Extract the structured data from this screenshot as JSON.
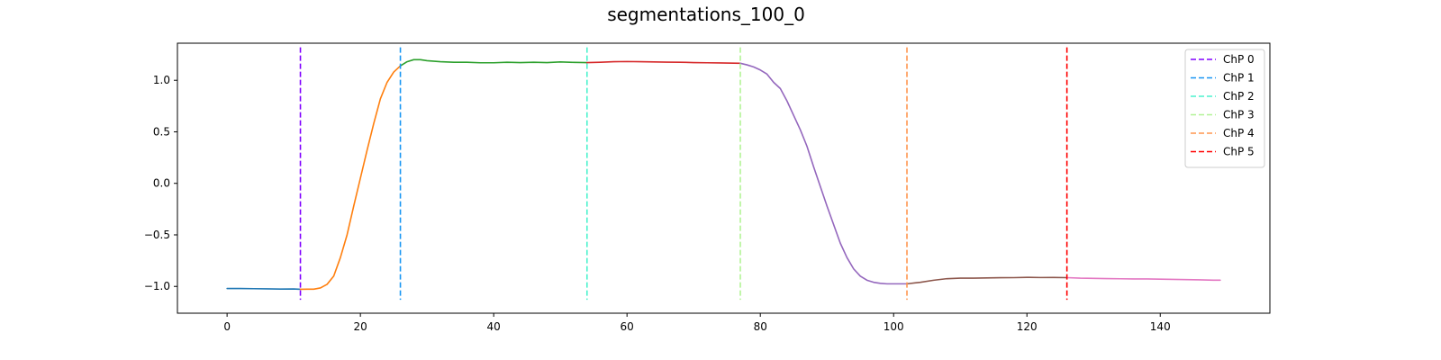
{
  "chart_data": {
    "type": "line",
    "title": "segmentations_100_0",
    "xlabel": "",
    "ylabel": "",
    "xlim": [
      -7.45,
      156.45
    ],
    "ylim": [
      -1.26,
      1.36
    ],
    "x_ticks": [
      0,
      20,
      40,
      60,
      80,
      100,
      120,
      140
    ],
    "x_tick_labels": [
      "0",
      "20",
      "40",
      "60",
      "80",
      "100",
      "120",
      "140"
    ],
    "y_ticks": [
      -1.0,
      -0.5,
      0.0,
      0.5,
      1.0
    ],
    "y_tick_labels": [
      "−1.0",
      "−0.5",
      "0.0",
      "0.5",
      "1.0"
    ],
    "grid": false,
    "legend_position": "top-right",
    "segments": [
      {
        "color": "#1f77b4",
        "x": [
          0,
          2,
          4,
          6,
          8,
          10,
          11
        ],
        "y": [
          -1.02,
          -1.02,
          -1.022,
          -1.024,
          -1.026,
          -1.025,
          -1.028
        ]
      },
      {
        "color": "#ff7f0e",
        "x": [
          11,
          12,
          13,
          14,
          15,
          16,
          17,
          18,
          19,
          20,
          21,
          22,
          23,
          24,
          25,
          26
        ],
        "y": [
          -1.028,
          -1.027,
          -1.027,
          -1.015,
          -0.98,
          -0.9,
          -0.72,
          -0.5,
          -0.22,
          0.05,
          0.32,
          0.58,
          0.82,
          0.98,
          1.08,
          1.14
        ]
      },
      {
        "color": "#2ca02c",
        "x": [
          26,
          27,
          28,
          29,
          30,
          32,
          34,
          36,
          38,
          40,
          42,
          44,
          46,
          48,
          50,
          52,
          54
        ],
        "y": [
          1.14,
          1.18,
          1.2,
          1.2,
          1.19,
          1.18,
          1.175,
          1.175,
          1.17,
          1.17,
          1.175,
          1.172,
          1.175,
          1.172,
          1.178,
          1.174,
          1.172
        ]
      },
      {
        "color": "#d62728",
        "x": [
          54,
          56,
          58,
          60,
          62,
          64,
          66,
          68,
          70,
          72,
          74,
          76,
          77
        ],
        "y": [
          1.172,
          1.175,
          1.18,
          1.182,
          1.18,
          1.178,
          1.176,
          1.175,
          1.172,
          1.17,
          1.168,
          1.166,
          1.165
        ]
      },
      {
        "color": "#9467bd",
        "x": [
          77,
          78,
          79,
          80,
          81,
          82,
          83,
          84,
          85,
          86,
          87,
          88,
          89,
          90,
          91,
          92,
          93,
          94,
          95,
          96,
          97,
          98,
          99,
          100,
          101,
          102
        ],
        "y": [
          1.165,
          1.15,
          1.13,
          1.1,
          1.06,
          0.98,
          0.92,
          0.8,
          0.66,
          0.52,
          0.36,
          0.16,
          -0.03,
          -0.22,
          -0.4,
          -0.58,
          -0.72,
          -0.83,
          -0.9,
          -0.94,
          -0.96,
          -0.97,
          -0.975,
          -0.975,
          -0.975,
          -0.975
        ]
      },
      {
        "color": "#8c564b",
        "x": [
          102,
          104,
          106,
          108,
          110,
          112,
          114,
          116,
          118,
          120,
          122,
          124,
          126
        ],
        "y": [
          -0.975,
          -0.96,
          -0.94,
          -0.925,
          -0.92,
          -0.92,
          -0.918,
          -0.916,
          -0.915,
          -0.912,
          -0.914,
          -0.913,
          -0.915
        ]
      },
      {
        "color": "#e377c2",
        "x": [
          126,
          128,
          130,
          132,
          134,
          136,
          138,
          140,
          142,
          144,
          146,
          148,
          149
        ],
        "y": [
          -0.915,
          -0.92,
          -0.922,
          -0.924,
          -0.926,
          -0.928,
          -0.928,
          -0.93,
          -0.932,
          -0.934,
          -0.936,
          -0.94,
          -0.94
        ]
      }
    ],
    "changepoints": [
      {
        "label": "ChP 0",
        "x": 11,
        "color": "#8000ff",
        "dashed": true
      },
      {
        "label": "ChP 1",
        "x": 26,
        "color": "#1996f3",
        "dashed": true
      },
      {
        "label": "ChP 2",
        "x": 54,
        "color": "#4cf2ce",
        "dashed": true
      },
      {
        "label": "ChP 3",
        "x": 77,
        "color": "#b2f396",
        "dashed": true
      },
      {
        "label": "ChP 4",
        "x": 102,
        "color": "#ff964f",
        "dashed": true
      },
      {
        "label": "ChP 5",
        "x": 126,
        "color": "#ff0000",
        "dashed": true
      }
    ]
  }
}
